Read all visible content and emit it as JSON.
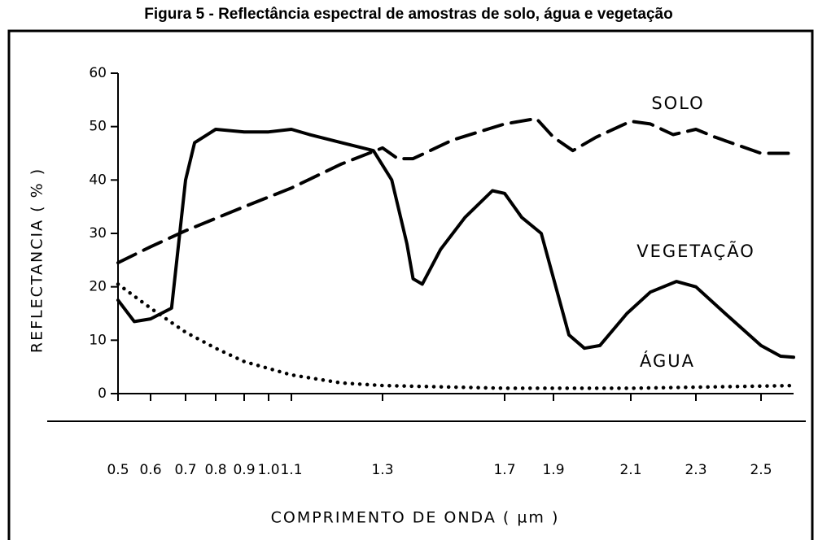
{
  "chart_data": {
    "type": "line",
    "title": "Figura 5 - Reflectância espectral de amostras de solo, água e vegetação",
    "xlabel": "COMPRIMENTO DE ONDA ( µm )",
    "ylabel": "REFLECTANCIA ( % )",
    "xlim": [
      0.5,
      2.6
    ],
    "ylim": [
      0,
      60
    ],
    "yticks": [
      0,
      10,
      20,
      30,
      40,
      50,
      60
    ],
    "xticks": [
      0.5,
      0.6,
      0.7,
      0.8,
      0.9,
      {
        "value": 1.0,
        "label": "1.0"
      },
      1.1,
      1.3,
      1.7,
      1.9,
      2.1,
      2.3,
      2.5
    ],
    "series": [
      {
        "name": "SOLO",
        "color": "#000000",
        "style": "dashed",
        "x": [
          0.5,
          0.6,
          0.7,
          0.9,
          1.1,
          1.21,
          1.3,
          1.35,
          1.4,
          1.53,
          1.7,
          1.83,
          1.9,
          1.95,
          2.01,
          2.1,
          2.16,
          2.23,
          2.3,
          2.36,
          2.5,
          2.6
        ],
        "values": [
          24.5,
          27.5,
          30.5,
          35,
          38.5,
          43,
          46,
          44,
          44,
          47.5,
          50.5,
          51.5,
          48,
          45.5,
          48,
          51,
          50.5,
          48.5,
          49.5,
          48,
          45,
          45
        ]
      },
      {
        "name": "VEGETAÇÃO",
        "color": "#000000",
        "style": "solid",
        "x": [
          0.5,
          0.55,
          0.6,
          0.66,
          0.7,
          0.73,
          0.8,
          0.9,
          1.0,
          1.1,
          1.14,
          1.21,
          1.28,
          1.33,
          1.38,
          1.4,
          1.43,
          1.49,
          1.57,
          1.66,
          1.7,
          1.77,
          1.85,
          1.94,
          1.98,
          2.02,
          2.09,
          2.16,
          2.24,
          2.3,
          2.39,
          2.5,
          2.56,
          2.6
        ],
        "values": [
          17.5,
          13.5,
          14,
          16,
          40,
          47,
          49.5,
          49,
          49,
          49.5,
          48.5,
          47,
          45.5,
          40,
          28,
          21.5,
          20.5,
          27,
          33,
          38,
          37.5,
          33,
          30,
          11,
          8.5,
          9,
          15,
          19,
          21,
          20,
          15,
          9,
          7,
          6.8
        ]
      },
      {
        "name": "ÁGUA",
        "color": "#000000",
        "style": "dotted",
        "x": [
          0.5,
          0.6,
          0.7,
          0.8,
          0.9,
          1.1,
          1.21,
          1.3,
          1.7,
          2.1,
          2.6
        ],
        "values": [
          20.5,
          16,
          11.5,
          8.5,
          6,
          3.5,
          2,
          1.5,
          1,
          1,
          1.5
        ]
      }
    ]
  }
}
